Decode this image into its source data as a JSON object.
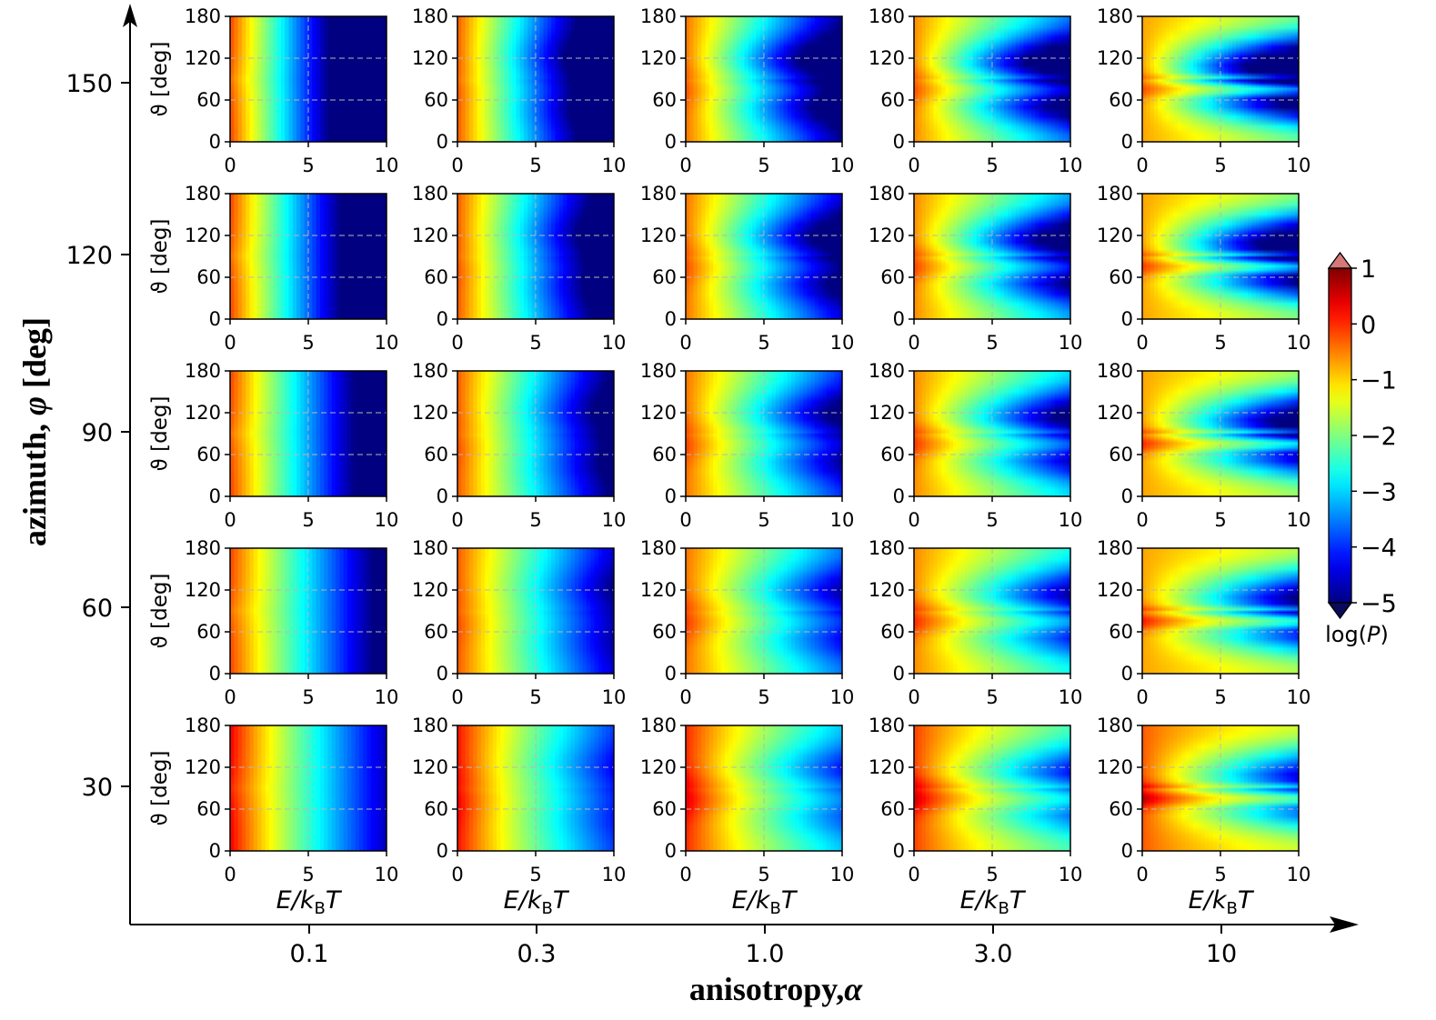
{
  "chart_data": {
    "type": "heatmap",
    "title": "",
    "description_labels": {
      "outer_xlabel": "anisotropy,",
      "outer_xlabel_symbol": "α",
      "outer_ylabel": "azimuth,",
      "outer_ylabel_symbol": "φ",
      "outer_ylabel_unit": "[deg]"
    },
    "outer_x_ticks": [
      "0.1",
      "0.3",
      "1.0",
      "3.0",
      "10"
    ],
    "outer_y_ticks": [
      "150",
      "120",
      "90",
      "60",
      "30"
    ],
    "anisotropy_values": [
      0.1,
      0.3,
      1.0,
      3.0,
      10
    ],
    "azimuth_values": [
      150,
      120,
      90,
      60,
      30
    ],
    "panel_xlabel": "E/kBT",
    "panel_xlabel_parts": {
      "e": "E/",
      "k": "k",
      "sub": "B",
      "t": "T"
    },
    "panel_ylabel": "ϑ [deg]",
    "panel_xlim": [
      0,
      10
    ],
    "panel_ylim": [
      0,
      180
    ],
    "panel_x_ticks": [
      "0",
      "5",
      "10"
    ],
    "panel_y_ticks": [
      "0",
      "60",
      "120",
      "180"
    ],
    "grid": true,
    "colorbar": {
      "label": "log(P)",
      "min": -5,
      "max": 1,
      "ticks": [
        "1",
        "0",
        "−1",
        "−2",
        "−3",
        "−4",
        "−5"
      ],
      "tick_values": [
        1,
        0,
        -1,
        -2,
        -3,
        -4,
        -5
      ],
      "colormap": "jet",
      "extend": "both",
      "placement": "right"
    }
  }
}
